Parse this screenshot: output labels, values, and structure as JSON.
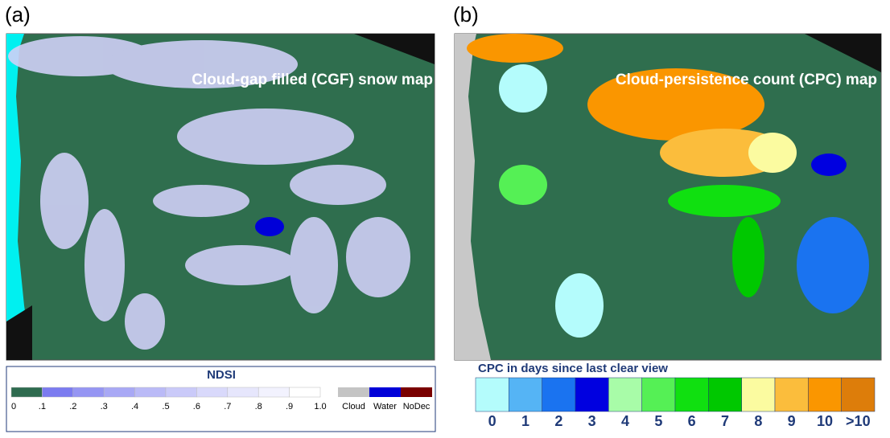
{
  "panels": [
    {
      "label": "(a)",
      "title": "Cloud-gap filled (CGF) snow map"
    },
    {
      "label": "(b)",
      "title": "Cloud-persistence count (CPC) map"
    }
  ],
  "ndsi_legend": {
    "title": "NDSI",
    "ticks": [
      "0",
      ".1",
      ".2",
      ".3",
      ".4",
      ".5",
      ".6",
      ".7",
      ".8",
      ".9",
      "1.0"
    ],
    "colors": [
      "#2e6b4f",
      "#7b7bf0",
      "#9595f3",
      "#a8a8f5",
      "#babaf7",
      "#cacaf9",
      "#d9d9fb",
      "#e6e6fc",
      "#f2f2fe",
      "#ffffff"
    ],
    "classes": [
      {
        "label": "Cloud",
        "color": "#c4c4c4"
      },
      {
        "label": "Water",
        "color": "#0000d8"
      },
      {
        "label": "NoDec",
        "color": "#7a0000"
      }
    ]
  },
  "cpc_legend": {
    "title": "CPC in days since last clear view",
    "classes": [
      {
        "label": "0",
        "color": "#b4fcfc"
      },
      {
        "label": "1",
        "color": "#55b4f5"
      },
      {
        "label": "2",
        "color": "#1a73f0"
      },
      {
        "label": "3",
        "color": "#0000e0"
      },
      {
        "label": "4",
        "color": "#a8fca8"
      },
      {
        "label": "5",
        "color": "#55f055"
      },
      {
        "label": "6",
        "color": "#10e010"
      },
      {
        "label": "7",
        "color": "#00c800"
      },
      {
        "label": "8",
        "color": "#fbfba0"
      },
      {
        "label": "9",
        "color": "#fbbd3c"
      },
      {
        "label": "10",
        "color": "#fa9600"
      },
      {
        "label": ">10",
        "color": "#dd7d0a"
      }
    ]
  }
}
